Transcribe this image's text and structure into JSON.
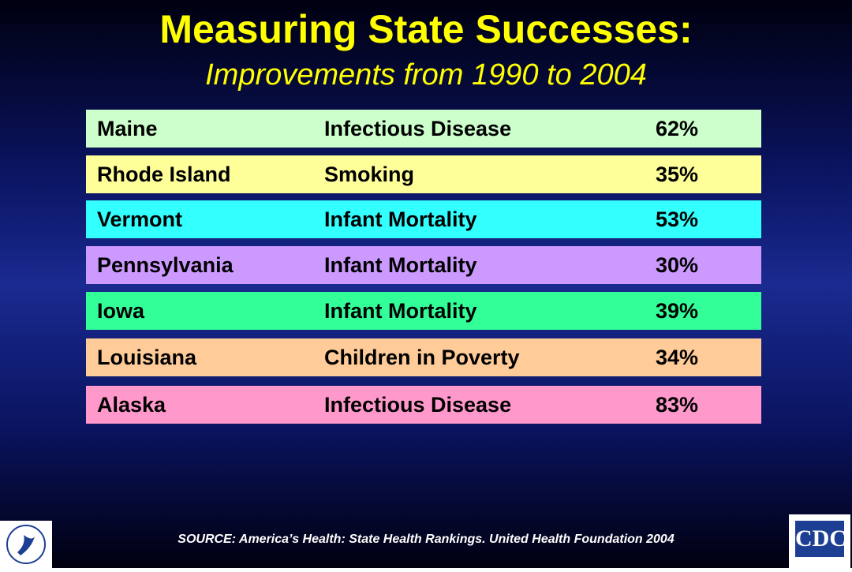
{
  "header": {
    "title": "Measuring State Successes:",
    "subtitle": "Improvements from 1990 to 2004"
  },
  "table": {
    "rows": [
      {
        "cells": [
          "Maine",
          "Infectious Disease",
          "62%"
        ],
        "color": "#ccffcc"
      },
      {
        "cells": [
          "Rhode Island",
          "Smoking",
          "35%"
        ],
        "color": "#ffff99"
      },
      {
        "cells": [
          "Vermont",
          "Infant Mortality",
          "53%"
        ],
        "color": "#33ffff"
      },
      {
        "cells": [
          "Pennsylvania",
          "Infant Mortality",
          "30%"
        ],
        "color": "#cc99ff"
      },
      {
        "cells": [
          "Iowa",
          "Infant Mortality",
          "39%"
        ],
        "color": "#33ff99"
      },
      {
        "cells": [
          "Louisiana",
          "Children in Poverty",
          "34%"
        ],
        "color": "#ffcc99"
      },
      {
        "cells": [
          "Alaska",
          "Infectious Disease",
          "83%"
        ],
        "color": "#ff99cc"
      }
    ]
  },
  "footer": {
    "source": "SOURCE: America’s Health: State Health Rankings. United Health Foundation 2004",
    "logo_right": "CDC"
  }
}
